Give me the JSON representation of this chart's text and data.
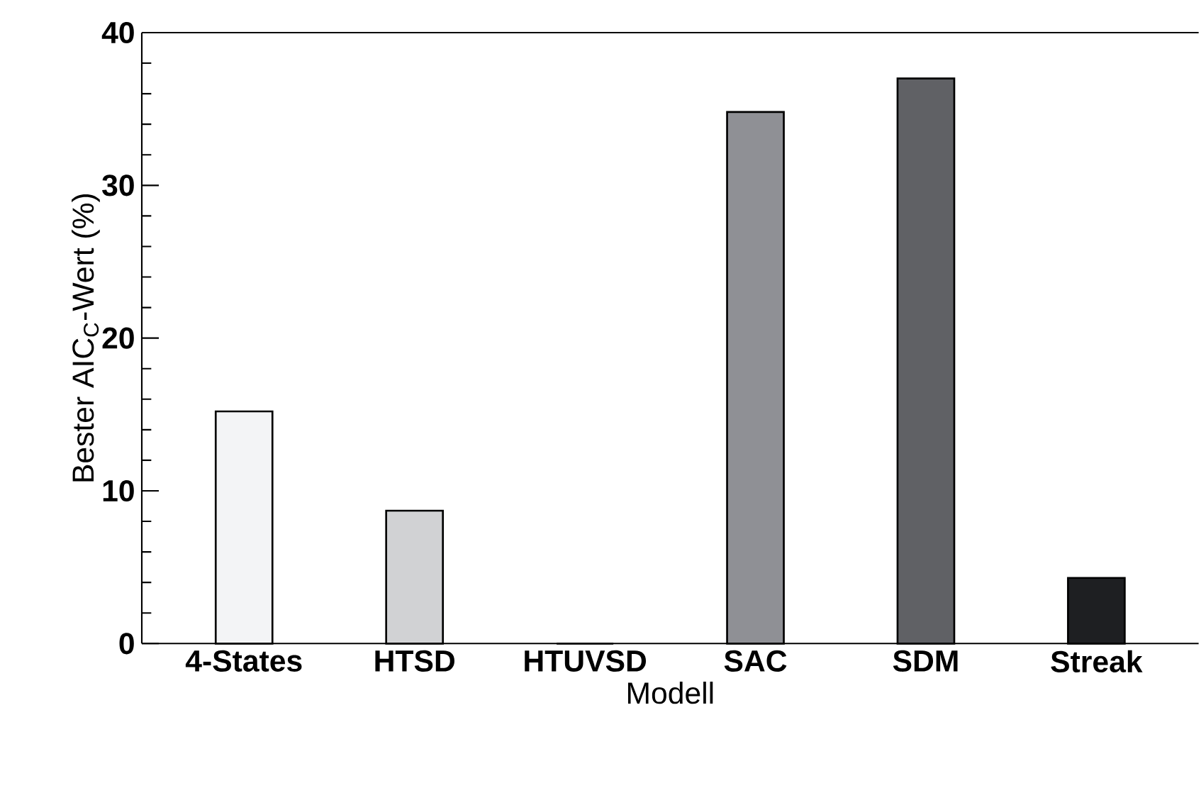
{
  "chart_data": {
    "type": "bar",
    "xlabel": "Modell",
    "ylabel": "Bester AIC$_{C}$-Wert (%)",
    "categories": [
      "4-States",
      "HTSD",
      "HTUVSD",
      "SAC",
      "SDM",
      "Streak"
    ],
    "values": [
      15.2,
      8.7,
      0,
      34.8,
      37.0,
      4.3
    ],
    "colors": [
      "#f3f4f6",
      "#d1d2d4",
      "#b0b1b4",
      "#8f9095",
      "#606165",
      "#1e1f22"
    ],
    "ylim": [
      0,
      40
    ],
    "yticks": [
      0,
      10,
      20,
      30,
      40
    ],
    "grid": false
  }
}
